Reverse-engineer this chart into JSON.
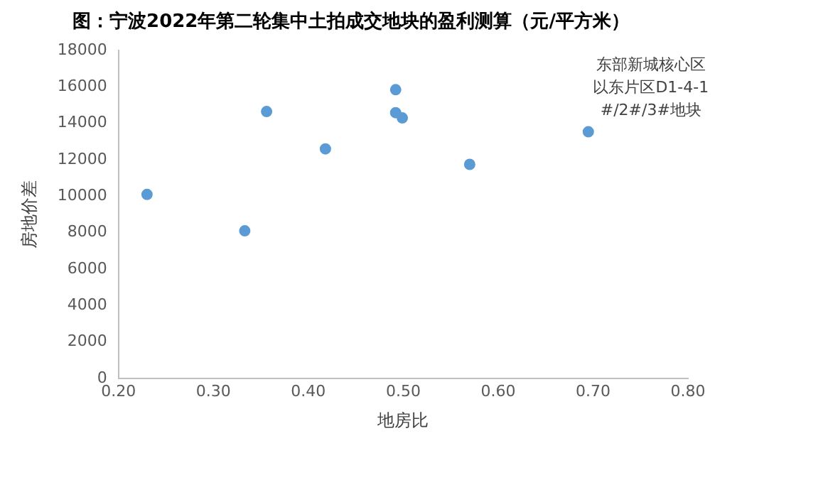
{
  "chart_data": {
    "type": "scatter",
    "title": "图：宁波2022年第二轮集中土拍成交地块的盈利测算（元/平方米）",
    "xlabel": "地房比",
    "ylabel": "房地价差",
    "series": [
      {
        "color": "#5b9bd5",
        "x": [
          0.23,
          0.333,
          0.356,
          0.418,
          0.492,
          0.492,
          0.499,
          0.57,
          0.695
        ],
        "values": [
          10100,
          8100,
          14650,
          12600,
          15850,
          14590,
          14300,
          11750,
          13540
        ]
      }
    ],
    "xlim": [
      0.2,
      0.8
    ],
    "xticks": [
      {
        "value": 0.2,
        "label": "0.20"
      },
      {
        "value": 0.3,
        "label": "0.30"
      },
      {
        "value": 0.4,
        "label": "0.40"
      },
      {
        "value": 0.5,
        "label": "0.50"
      },
      {
        "value": 0.6,
        "label": "0.60"
      },
      {
        "value": 0.7,
        "label": "0.70"
      },
      {
        "value": 0.8,
        "label": "0.80"
      }
    ],
    "ylim": [
      0,
      18000
    ],
    "yticks": [
      0,
      2000,
      4000,
      6000,
      8000,
      10000,
      12000,
      14000,
      16000,
      18000
    ],
    "grid": false,
    "legend": false,
    "marker": "circle",
    "annotations": [
      {
        "text": "东部新城核心区以东片区D1-4-1#/2#/3#地块",
        "x": 0.695,
        "y": 13540
      }
    ]
  }
}
